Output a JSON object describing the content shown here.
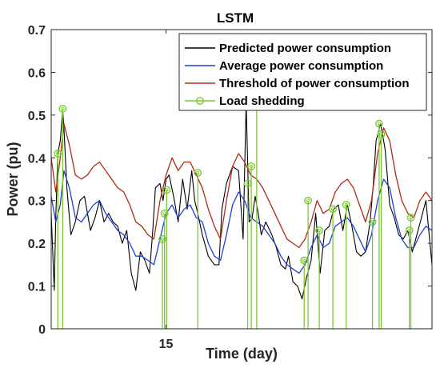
{
  "chart_data": {
    "type": "line",
    "title": "LSTM",
    "xlabel": "Time (day)",
    "ylabel": "Power (pu)",
    "xlim": [
      11.2,
      23.8
    ],
    "ylim": [
      0,
      0.7
    ],
    "xticks": [
      15
    ],
    "yticks": [
      0,
      0.1,
      0.2,
      0.3,
      0.4,
      0.5,
      0.6,
      0.7
    ],
    "legend_position": "top-right",
    "grid": false,
    "series": [
      {
        "name": "Predicted power consumption",
        "color": "#000000",
        "kind": "line",
        "x": [
          11.2,
          11.3,
          11.35,
          11.42,
          11.5,
          11.58,
          11.62,
          11.72,
          11.85,
          12.0,
          12.15,
          12.3,
          12.5,
          12.65,
          12.8,
          12.95,
          13.1,
          13.25,
          13.4,
          13.55,
          13.7,
          13.85,
          14.0,
          14.15,
          14.3,
          14.45,
          14.55,
          14.65,
          14.8,
          14.9,
          15.0,
          15.1,
          15.25,
          15.4,
          15.55,
          15.7,
          15.85,
          15.95,
          16.05,
          16.2,
          16.4,
          16.6,
          16.75,
          16.85,
          17.0,
          17.2,
          17.4,
          17.55,
          17.65,
          17.75,
          17.85,
          17.95,
          18.05,
          18.15,
          18.3,
          18.5,
          18.65,
          18.8,
          18.95,
          19.05,
          19.2,
          19.35,
          19.5,
          19.65,
          19.8,
          19.95,
          20.1,
          20.25,
          20.4,
          20.55,
          20.7,
          20.85,
          21.0,
          21.15,
          21.3,
          21.45,
          21.6,
          21.75,
          21.85,
          21.95,
          22.1,
          22.25,
          22.4,
          22.55,
          22.7,
          22.85,
          23.0,
          23.15,
          23.3,
          23.45,
          23.6,
          23.8
        ],
        "values": [
          0.27,
          0.09,
          0.26,
          0.41,
          0.44,
          0.51,
          0.47,
          0.33,
          0.22,
          0.25,
          0.3,
          0.31,
          0.23,
          0.26,
          0.3,
          0.25,
          0.27,
          0.25,
          0.24,
          0.2,
          0.23,
          0.13,
          0.09,
          0.18,
          0.16,
          0.13,
          0.22,
          0.33,
          0.34,
          0.3,
          0.35,
          0.36,
          0.31,
          0.25,
          0.35,
          0.28,
          0.37,
          0.3,
          0.27,
          0.22,
          0.17,
          0.15,
          0.15,
          0.28,
          0.34,
          0.38,
          0.37,
          0.21,
          0.53,
          0.25,
          0.26,
          0.31,
          0.27,
          0.22,
          0.25,
          0.22,
          0.19,
          0.15,
          0.14,
          0.17,
          0.11,
          0.1,
          0.07,
          0.12,
          0.16,
          0.27,
          0.13,
          0.23,
          0.24,
          0.28,
          0.29,
          0.23,
          0.29,
          0.24,
          0.18,
          0.17,
          0.18,
          0.25,
          0.33,
          0.44,
          0.48,
          0.42,
          0.29,
          0.26,
          0.22,
          0.21,
          0.23,
          0.18,
          0.22,
          0.26,
          0.3,
          0.15
        ]
      },
      {
        "name": "Average power consumption",
        "color": "#1f3fd8",
        "kind": "line",
        "x": [
          11.2,
          11.35,
          11.5,
          11.62,
          11.8,
          12.0,
          12.2,
          12.4,
          12.6,
          12.8,
          13.0,
          13.2,
          13.4,
          13.6,
          13.8,
          14.0,
          14.2,
          14.4,
          14.6,
          14.8,
          15.0,
          15.2,
          15.4,
          15.6,
          15.8,
          16.0,
          16.2,
          16.4,
          16.6,
          16.8,
          17.0,
          17.2,
          17.4,
          17.6,
          17.8,
          18.0,
          18.2,
          18.4,
          18.6,
          18.8,
          19.0,
          19.2,
          19.4,
          19.6,
          19.8,
          20.0,
          20.2,
          20.4,
          20.6,
          20.8,
          21.0,
          21.2,
          21.4,
          21.6,
          21.8,
          22.0,
          22.2,
          22.4,
          22.6,
          22.8,
          23.0,
          23.2,
          23.4,
          23.6,
          23.8
        ],
        "values": [
          0.31,
          0.25,
          0.29,
          0.37,
          0.33,
          0.26,
          0.25,
          0.27,
          0.29,
          0.3,
          0.27,
          0.25,
          0.23,
          0.22,
          0.2,
          0.17,
          0.17,
          0.16,
          0.15,
          0.21,
          0.27,
          0.29,
          0.26,
          0.28,
          0.29,
          0.26,
          0.25,
          0.2,
          0.17,
          0.16,
          0.22,
          0.29,
          0.32,
          0.3,
          0.26,
          0.25,
          0.24,
          0.22,
          0.2,
          0.17,
          0.15,
          0.14,
          0.13,
          0.15,
          0.19,
          0.22,
          0.19,
          0.2,
          0.24,
          0.25,
          0.26,
          0.24,
          0.21,
          0.18,
          0.22,
          0.3,
          0.35,
          0.33,
          0.26,
          0.21,
          0.19,
          0.19,
          0.22,
          0.24,
          0.23
        ]
      },
      {
        "name": "Threshold of power consumption",
        "color": "#b22a14",
        "kind": "line",
        "x": [
          11.2,
          11.35,
          11.5,
          11.62,
          11.8,
          12.0,
          12.2,
          12.4,
          12.6,
          12.8,
          13.0,
          13.2,
          13.4,
          13.6,
          13.8,
          14.0,
          14.2,
          14.4,
          14.6,
          14.8,
          15.0,
          15.2,
          15.4,
          15.6,
          15.8,
          16.0,
          16.2,
          16.4,
          16.6,
          16.8,
          17.0,
          17.2,
          17.4,
          17.6,
          17.8,
          18.0,
          18.2,
          18.4,
          18.6,
          18.8,
          19.0,
          19.2,
          19.4,
          19.6,
          19.8,
          20.0,
          20.2,
          20.4,
          20.6,
          20.8,
          21.0,
          21.2,
          21.4,
          21.6,
          21.8,
          22.0,
          22.2,
          22.4,
          22.6,
          22.8,
          23.0,
          23.2,
          23.4,
          23.6,
          23.8
        ],
        "values": [
          0.4,
          0.32,
          0.4,
          0.48,
          0.43,
          0.36,
          0.35,
          0.36,
          0.38,
          0.39,
          0.37,
          0.35,
          0.33,
          0.32,
          0.29,
          0.25,
          0.24,
          0.22,
          0.21,
          0.3,
          0.36,
          0.4,
          0.37,
          0.39,
          0.39,
          0.36,
          0.33,
          0.28,
          0.24,
          0.21,
          0.3,
          0.38,
          0.41,
          0.39,
          0.36,
          0.35,
          0.33,
          0.3,
          0.27,
          0.24,
          0.21,
          0.2,
          0.19,
          0.21,
          0.25,
          0.3,
          0.27,
          0.28,
          0.32,
          0.34,
          0.35,
          0.33,
          0.29,
          0.25,
          0.3,
          0.41,
          0.47,
          0.44,
          0.36,
          0.3,
          0.27,
          0.26,
          0.3,
          0.32,
          0.3
        ]
      },
      {
        "name": "Load shedding",
        "color": "#7dc832",
        "kind": "stem",
        "x": [
          11.42,
          11.58,
          14.88,
          14.95,
          15.02,
          16.05,
          17.7,
          17.82,
          18.0,
          19.57,
          19.7,
          20.07,
          20.52,
          20.96,
          21.83,
          22.05,
          22.12,
          23.05,
          23.1
        ],
        "values": [
          0.41,
          0.515,
          0.21,
          0.27,
          0.325,
          0.365,
          0.34,
          0.38,
          0.535,
          0.16,
          0.3,
          0.23,
          0.28,
          0.29,
          0.25,
          0.48,
          0.455,
          0.23,
          0.26
        ]
      }
    ]
  }
}
